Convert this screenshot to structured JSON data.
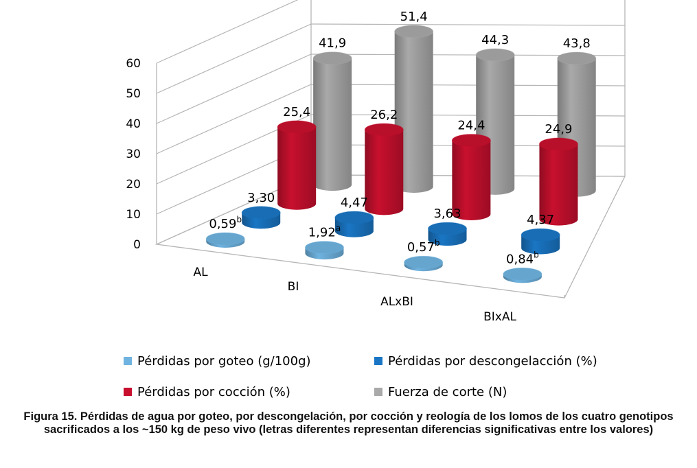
{
  "caption": "Figura 15. Pérdidas de agua por goteo, por descongelación, por cocción y reología de los lomos de los cuatro genotipos sacrificados a los ~150 kg de peso vivo (letras diferentes representan diferencias significativas entre los valores)",
  "chart_data": {
    "type": "bar",
    "style": "3d-cylinder",
    "categories": [
      "AL",
      "BI",
      "ALxBI",
      "BIxAL"
    ],
    "ylim": [
      0,
      60
    ],
    "yticks": [
      "0",
      "10",
      "20",
      "30",
      "40",
      "50",
      "60"
    ],
    "grid": true,
    "legend_position": "bottom",
    "series": [
      {
        "name": "Pérdidas por goteo (g/100g)",
        "color": "#6fb3e0",
        "values": [
          0.59,
          1.92,
          0.57,
          0.84
        ],
        "labels": [
          "0,59",
          "1,92",
          "0,57",
          "0,84"
        ],
        "superscripts": [
          "b",
          "a",
          "b",
          "b"
        ]
      },
      {
        "name": "Pérdidas por descongelacción (%)",
        "color": "#1a76c4",
        "values": [
          3.3,
          4.47,
          3.63,
          4.37
        ],
        "labels": [
          "3,30",
          "4,47",
          "3,63",
          "4,37"
        ]
      },
      {
        "name": "Pérdidas por cocción (%)",
        "color": "#c8102e",
        "values": [
          25.4,
          26.2,
          24.4,
          24.9
        ],
        "labels": [
          "25,4",
          "26,2",
          "24,4",
          "24,9"
        ]
      },
      {
        "name": "Fuerza de corte (N)",
        "color": "#a9a9a9",
        "values": [
          41.9,
          51.4,
          44.3,
          43.8
        ],
        "labels": [
          "41,9",
          "51,4",
          "44,3",
          "43,8"
        ]
      }
    ]
  }
}
